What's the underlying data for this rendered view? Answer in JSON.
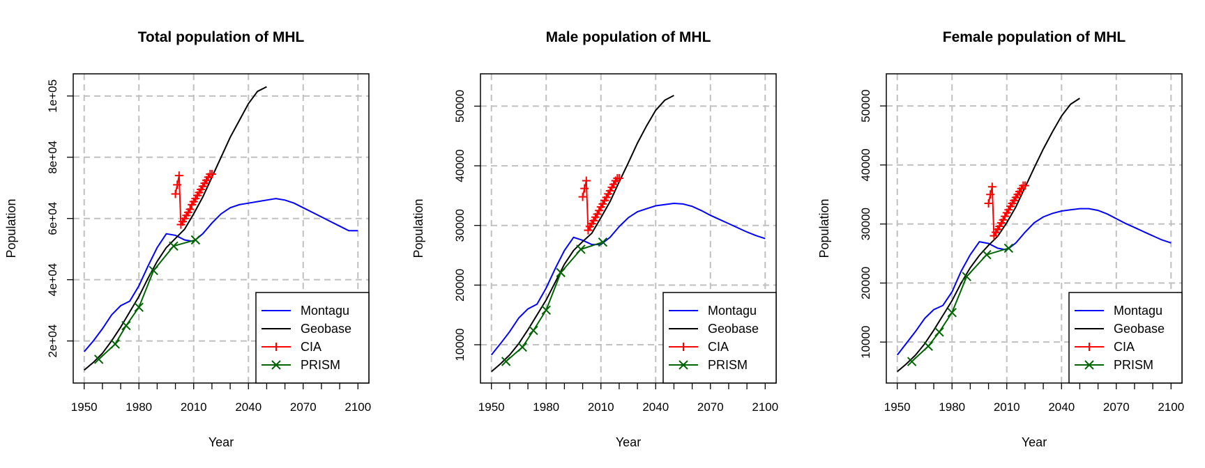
{
  "series_styles": {
    "Montagu": {
      "color": "#0000ff",
      "marker": "none"
    },
    "Geobase": {
      "color": "#000000",
      "marker": "none"
    },
    "CIA": {
      "color": "#ff0000",
      "marker": "plus"
    },
    "PRISM": {
      "color": "#006400",
      "marker": "x"
    }
  },
  "chart_data": [
    {
      "type": "line",
      "title": "Total population of MHL",
      "xlabel": "Year",
      "ylabel": "Population",
      "xlim": [
        1950,
        2100
      ],
      "ylim": [
        10000,
        103500
      ],
      "x_ticks": [
        1950,
        1980,
        2010,
        2040,
        2070,
        2100
      ],
      "y_ticks": [
        20000,
        40000,
        60000,
        80000,
        100000
      ],
      "y_tick_labels": [
        "2e+04",
        "4e+04",
        "6e+04",
        "8e+04",
        "1e+05"
      ],
      "grid": true,
      "legend_position": "bottom-right",
      "series": [
        {
          "name": "Montagu",
          "x": [
            1950,
            1955,
            1960,
            1965,
            1970,
            1975,
            1980,
            1985,
            1990,
            1995,
            2000,
            2005,
            2010,
            2015,
            2020,
            2025,
            2030,
            2035,
            2040,
            2045,
            2050,
            2055,
            2060,
            2065,
            2070,
            2075,
            2080,
            2085,
            2090,
            2095,
            2100
          ],
          "y": [
            16500,
            20000,
            24000,
            28500,
            31500,
            33000,
            38000,
            44500,
            50500,
            55000,
            54500,
            53000,
            52500,
            55000,
            58500,
            61500,
            63500,
            64500,
            65000,
            65500,
            66000,
            66500,
            66000,
            65000,
            63500,
            62000,
            60500,
            59000,
            57500,
            56000,
            56000
          ]
        },
        {
          "name": "Geobase",
          "x": [
            1950,
            1955,
            1960,
            1965,
            1970,
            1975,
            1980,
            1985,
            1990,
            1995,
            2000,
            2005,
            2010,
            2015,
            2020,
            2025,
            2030,
            2035,
            2040,
            2045,
            2050
          ],
          "y": [
            10500,
            13000,
            16000,
            20000,
            24500,
            29500,
            34500,
            40500,
            46000,
            50500,
            53500,
            56500,
            61500,
            67000,
            73500,
            80000,
            86500,
            92000,
            97500,
            101500,
            103000
          ]
        },
        {
          "name": "CIA",
          "x": [
            2000,
            2001,
            2002,
            2003,
            2004,
            2005,
            2006,
            2007,
            2008,
            2009,
            2010,
            2011,
            2012,
            2013,
            2014,
            2015,
            2016,
            2017,
            2018,
            2019,
            2020
          ],
          "y": [
            68000,
            71000,
            74000,
            58000,
            59000,
            60000,
            61000,
            62000,
            63000,
            64500,
            65500,
            66500,
            67500,
            68500,
            69500,
            70500,
            71500,
            72500,
            73500,
            74500,
            74500
          ]
        },
        {
          "name": "PRISM",
          "x": [
            1958,
            1967,
            1973,
            1980,
            1988,
            1999,
            2011
          ],
          "y": [
            14000,
            19000,
            25000,
            31000,
            43000,
            51000,
            53000
          ]
        }
      ]
    },
    {
      "type": "line",
      "title": "Male population of MHL",
      "xlabel": "Year",
      "ylabel": "Population",
      "xlim": [
        1950,
        2100
      ],
      "ylim": [
        5500,
        53500
      ],
      "x_ticks": [
        1950,
        1980,
        2010,
        2040,
        2070,
        2100
      ],
      "y_ticks": [
        10000,
        20000,
        30000,
        40000,
        50000
      ],
      "y_tick_labels": [
        "10000",
        "20000",
        "30000",
        "40000",
        "50000"
      ],
      "grid": true,
      "legend_position": "bottom-right",
      "series": [
        {
          "name": "Montagu",
          "x": [
            1950,
            1955,
            1960,
            1965,
            1970,
            1975,
            1980,
            1985,
            1990,
            1995,
            2000,
            2005,
            2010,
            2015,
            2020,
            2025,
            2030,
            2035,
            2040,
            2045,
            2050,
            2055,
            2060,
            2065,
            2070,
            2075,
            2080,
            2085,
            2090,
            2095,
            2100
          ],
          "y": [
            8300,
            10200,
            12200,
            14500,
            16000,
            16800,
            19500,
            22800,
            25800,
            28000,
            27500,
            26800,
            26800,
            28000,
            29800,
            31300,
            32300,
            32800,
            33300,
            33500,
            33700,
            33600,
            33200,
            32500,
            31700,
            31000,
            30300,
            29600,
            28900,
            28300,
            27800
          ]
        },
        {
          "name": "Geobase",
          "x": [
            1950,
            1955,
            1960,
            1965,
            1970,
            1975,
            1980,
            1985,
            1990,
            1995,
            2000,
            2005,
            2010,
            2015,
            2020,
            2025,
            2030,
            2035,
            2040,
            2045,
            2050
          ],
          "y": [
            5500,
            6800,
            8300,
            10200,
            12500,
            15000,
            17500,
            20500,
            23500,
            25800,
            27300,
            28700,
            31300,
            34000,
            37300,
            40500,
            43800,
            46700,
            49300,
            51000,
            51800
          ]
        },
        {
          "name": "CIA",
          "x": [
            2000,
            2001,
            2002,
            2003,
            2004,
            2005,
            2006,
            2007,
            2008,
            2009,
            2010,
            2011,
            2012,
            2013,
            2014,
            2015,
            2016,
            2017,
            2018,
            2019,
            2020
          ],
          "y": [
            34800,
            36200,
            37500,
            29200,
            29800,
            30300,
            30800,
            31400,
            31900,
            32500,
            33100,
            33600,
            34200,
            34700,
            35300,
            35800,
            36400,
            36900,
            37500,
            37900,
            37900
          ]
        },
        {
          "name": "PRISM",
          "x": [
            1958,
            1967,
            1973,
            1980,
            1988,
            1999,
            2011
          ],
          "y": [
            7200,
            9600,
            12400,
            15800,
            22100,
            26000,
            27200
          ]
        }
      ]
    },
    {
      "type": "line",
      "title": "Female population of MHL",
      "xlabel": "Year",
      "ylabel": "Population",
      "xlim": [
        1950,
        2100
      ],
      "ylim": [
        5000,
        53500
      ],
      "x_ticks": [
        1950,
        1980,
        2010,
        2040,
        2070,
        2100
      ],
      "y_ticks": [
        10000,
        20000,
        30000,
        40000,
        50000
      ],
      "y_tick_labels": [
        "10000",
        "20000",
        "30000",
        "40000",
        "50000"
      ],
      "grid": true,
      "legend_position": "bottom-right",
      "series": [
        {
          "name": "Montagu",
          "x": [
            1950,
            1955,
            1960,
            1965,
            1970,
            1975,
            1980,
            1985,
            1990,
            1995,
            2000,
            2005,
            2010,
            2015,
            2020,
            2025,
            2030,
            2035,
            2040,
            2045,
            2050,
            2055,
            2060,
            2065,
            2070,
            2075,
            2080,
            2085,
            2090,
            2095,
            2100
          ],
          "y": [
            7800,
            9800,
            11800,
            14000,
            15500,
            16200,
            18500,
            22000,
            24800,
            27000,
            26700,
            25900,
            25600,
            26800,
            28600,
            30200,
            31200,
            31800,
            32200,
            32400,
            32600,
            32600,
            32300,
            31700,
            30900,
            30100,
            29400,
            28700,
            28000,
            27300,
            26800
          ]
        },
        {
          "name": "Geobase",
          "x": [
            1950,
            1955,
            1960,
            1965,
            1970,
            1975,
            1980,
            1985,
            1990,
            1995,
            2000,
            2005,
            2010,
            2015,
            2020,
            2025,
            2030,
            2035,
            2040,
            2045,
            2050
          ],
          "y": [
            5000,
            6300,
            7800,
            9700,
            12000,
            14500,
            17000,
            20000,
            22600,
            24700,
            26400,
            27900,
            30200,
            32900,
            36200,
            39500,
            42700,
            45600,
            48300,
            50300,
            51300
          ]
        },
        {
          "name": "CIA",
          "x": [
            2000,
            2001,
            2002,
            2003,
            2004,
            2005,
            2006,
            2007,
            2008,
            2009,
            2010,
            2011,
            2012,
            2013,
            2014,
            2015,
            2016,
            2017,
            2018,
            2019,
            2020
          ],
          "y": [
            33500,
            35000,
            36300,
            28000,
            28600,
            29100,
            29600,
            30200,
            30700,
            31300,
            31900,
            32400,
            33000,
            33500,
            34000,
            34500,
            35000,
            35500,
            36000,
            36500,
            36500
          ]
        },
        {
          "name": "PRISM",
          "x": [
            1958,
            1967,
            1973,
            1980,
            1988,
            1999,
            2011
          ],
          "y": [
            6700,
            9300,
            11700,
            15000,
            21100,
            24800,
            25900
          ]
        }
      ]
    }
  ]
}
